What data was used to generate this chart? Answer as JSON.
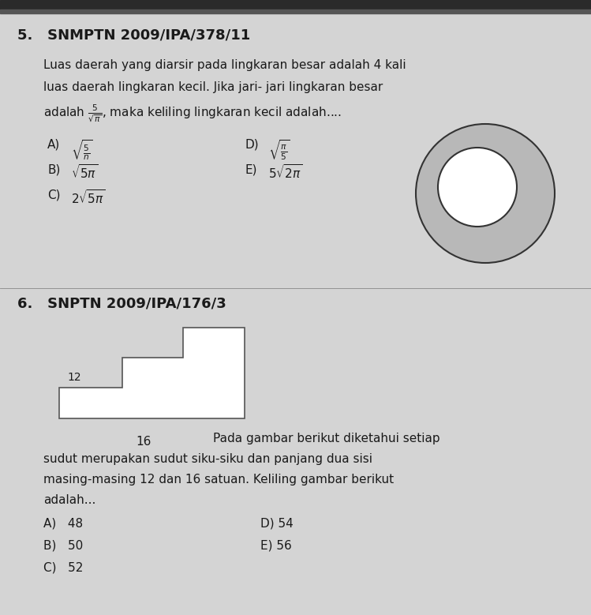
{
  "bg_color": "#d4d4d4",
  "title5": "5.   SNMPTN 2009/IPA/378/11",
  "title6": "6.   SNPTN 2009/IPA/176/3",
  "body5": [
    "Luas daerah yang diarsir pada lingkaran besar adalah 4 kali",
    "luas daerah lingkaran kecil. Jika jari- jari lingkaran besar",
    "adalah $\\frac{5}{\\sqrt{\\pi}}$, maka keliling lingkaran kecil adalah...."
  ],
  "ans5_left": [
    [
      "A)",
      "$\\sqrt{\\frac{5}{n}}$"
    ],
    [
      "B)",
      "$\\sqrt{5\\pi}$"
    ],
    [
      "C)",
      "$2\\sqrt{5\\pi}$"
    ]
  ],
  "ans5_right": [
    [
      "D)",
      "$\\sqrt{\\frac{\\pi}{5}}$"
    ],
    [
      "E)",
      "$5\\sqrt{2\\pi}$"
    ]
  ],
  "body6_label": "16",
  "body6_text": [
    "Pada gambar berikut diketahui setiap",
    "sudut merupakan sudut siku-siku dan panjang dua sisi",
    "masing-masing 12 dan 16 satuan. Keliling gambar berikut",
    "adalah..."
  ],
  "ans6_left": [
    "A)   48",
    "B)   50",
    "C)   52"
  ],
  "ans6_right": [
    "D) 54",
    "E) 56"
  ],
  "label_12": "12",
  "text_color": "#1a1a1a",
  "dark_gray": "#7a7a7a",
  "circle_fill": "#b8b8b8",
  "circle_edge": "#333333"
}
